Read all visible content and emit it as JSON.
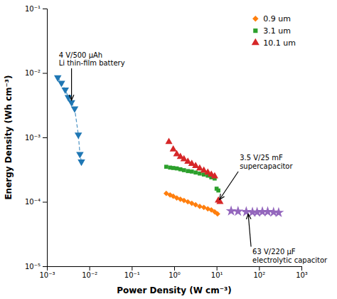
{
  "chart_data": {
    "type": "scatter",
    "x_label": "Power Density (W cm⁻³)",
    "y_label": "Energy Density (Wh cm⁻³)",
    "log": true,
    "xlim": [
      0.001,
      1000
    ],
    "ylim": [
      1e-05,
      0.1
    ],
    "xticks": [
      {
        "value": 0.001,
        "label": "10⁻³"
      },
      {
        "value": 0.01,
        "label": "10⁻²"
      },
      {
        "value": 0.1,
        "label": "10⁻¹"
      },
      {
        "value": 1,
        "label": "10⁰"
      },
      {
        "value": 10,
        "label": "10¹"
      },
      {
        "value": 100,
        "label": "10²"
      },
      {
        "value": 1000,
        "label": "10³"
      }
    ],
    "yticks": [
      {
        "value": 1e-05,
        "label": "10⁻⁵"
      },
      {
        "value": 0.0001,
        "label": "10⁻⁴"
      },
      {
        "value": 0.001,
        "label": "10⁻³"
      },
      {
        "value": 0.01,
        "label": "10⁻²"
      },
      {
        "value": 0.1,
        "label": "10⁻¹"
      }
    ],
    "grid": false,
    "legend": "upper right",
    "series": [
      {
        "x": [
          0.0018,
          0.0022,
          0.0027,
          0.0032,
          0.0038,
          0.0045,
          0.0055,
          0.006,
          0.0065
        ],
        "values": [
          0.0085,
          0.007,
          0.0055,
          0.0042,
          0.0035,
          0.0028,
          0.0011,
          0.00055,
          0.00042
        ],
        "marker": "triangle-down",
        "line_style": "dashed"
      },
      {
        "name": "0.9 um",
        "x": [
          0.65,
          0.8,
          0.95,
          1.15,
          1.4,
          1.7,
          2.1,
          2.6,
          3.2,
          4.0,
          5.0,
          6.2,
          7.5,
          9.0,
          10.5
        ],
        "values": [
          0.000135,
          0.000128,
          0.000122,
          0.000115,
          0.00011,
          0.000105,
          0.0001,
          9.5e-05,
          9e-05,
          8.5e-05,
          8.2e-05,
          7.8e-05,
          7.5e-05,
          7e-05,
          6.5e-05
        ],
        "marker": "diamond"
      },
      {
        "name": "3.1 um",
        "x": [
          0.65,
          0.8,
          0.95,
          1.15,
          1.4,
          1.7,
          2.1,
          2.6,
          3.2,
          4.0,
          5.0,
          6.2,
          7.5,
          9.0,
          10.0,
          11.0
        ],
        "values": [
          0.00035,
          0.00034,
          0.000335,
          0.00033,
          0.00032,
          0.00031,
          0.0003,
          0.000295,
          0.000285,
          0.000275,
          0.000265,
          0.000255,
          0.00024,
          0.00023,
          0.00016,
          0.00015
        ],
        "marker": "square"
      },
      {
        "name": "10.1 um",
        "x": [
          0.75,
          0.95,
          1.15,
          1.4,
          1.7,
          2.1,
          2.6,
          3.2,
          4.0,
          5.0,
          6.2,
          7.5,
          9.0,
          11.0,
          12.0
        ],
        "values": [
          0.00085,
          0.00065,
          0.00055,
          0.0005,
          0.00046,
          0.00042,
          0.00039,
          0.00036,
          0.00033,
          0.000305,
          0.000285,
          0.000265,
          0.00025,
          0.000105,
          0.0001
        ],
        "marker": "triangle-up"
      },
      {
        "x": [
          22,
          32,
          50,
          70,
          90,
          120,
          160,
          220,
          290
        ],
        "values": [
          7.2e-05,
          7.1e-05,
          7e-05,
          6.9e-05,
          6.9e-05,
          7e-05,
          7e-05,
          6.9e-05,
          6.8e-05
        ],
        "marker": "star",
        "line_style": "dashed"
      }
    ],
    "annotations": [
      {
        "text": "4 V/500 μAh\nLi thin-film battery",
        "x": 0.0038,
        "y": 0.0035,
        "text_x": 0.0019,
        "text_y": 0.022
      },
      {
        "text": "3.5 V/25 mF\nsupercapacitor",
        "x": 11.0,
        "y": 0.000102,
        "text_x": 35.0,
        "text_y": 0.00055
      },
      {
        "text": "63 V/220 μF\nelectrolytic capacitor",
        "x": 55,
        "y": 7e-05,
        "text_x": 70,
        "text_y": 1.8e-05
      }
    ]
  }
}
